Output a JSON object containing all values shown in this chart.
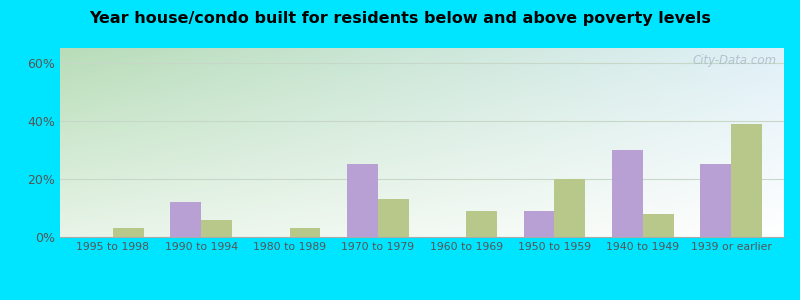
{
  "title": "Year house/condo built for residents below and above poverty levels",
  "categories": [
    "1995 to 1998",
    "1990 to 1994",
    "1980 to 1989",
    "1970 to 1979",
    "1960 to 1969",
    "1950 to 1959",
    "1940 to 1949",
    "1939 or earlier"
  ],
  "below_poverty": [
    0,
    12,
    0,
    25,
    0,
    9,
    30,
    25
  ],
  "above_poverty": [
    3,
    6,
    3,
    13,
    9,
    20,
    8,
    39
  ],
  "below_color": "#b89fd4",
  "above_color": "#b8c88a",
  "bar_width": 0.35,
  "ylim": [
    0,
    65
  ],
  "yticks": [
    0,
    20,
    40,
    60
  ],
  "ytick_labels": [
    "0%",
    "20%",
    "40%",
    "60%"
  ],
  "bg_outer": "#00e5ff",
  "bg_tl": "#b8ddb8",
  "bg_tr": "#e8f4f8",
  "bg_bl": "#e8f4e8",
  "bg_br": "#ffffff",
  "grid_color": "#c8d8c8",
  "watermark": "City-Data.com",
  "title_fontsize": 11.5
}
